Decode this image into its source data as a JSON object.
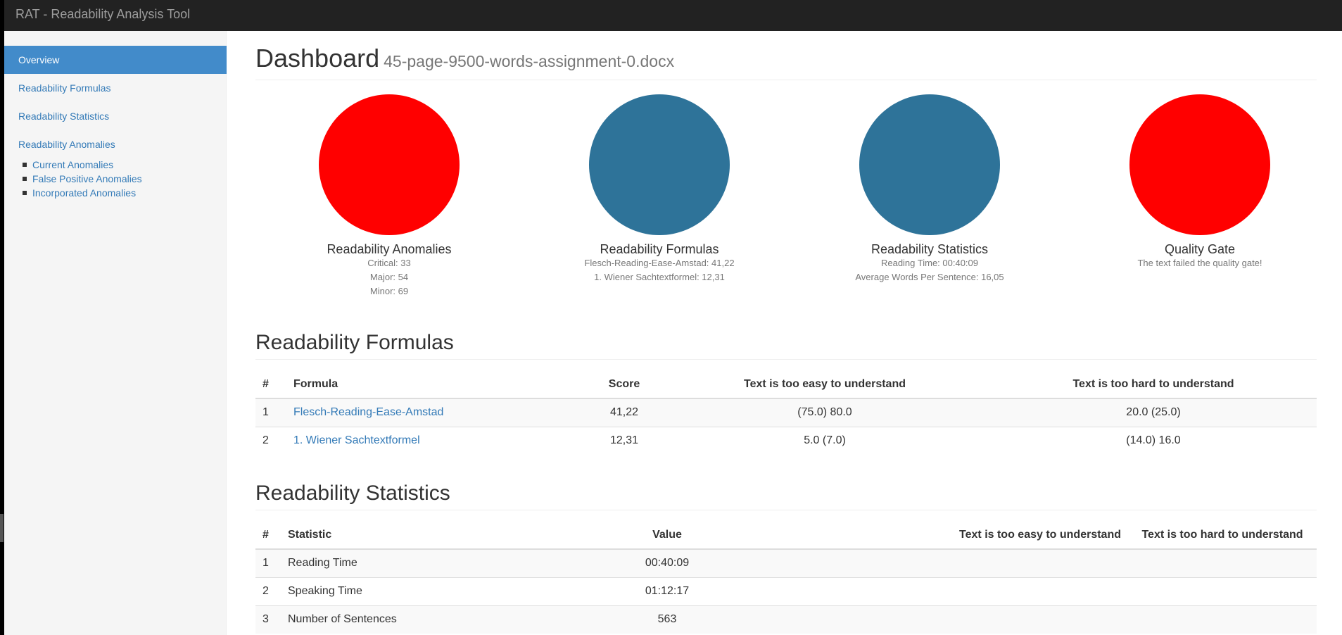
{
  "app": {
    "title": "RAT - Readability Analysis Tool"
  },
  "sidebar": {
    "items": [
      {
        "label": "Overview"
      },
      {
        "label": "Readability Formulas"
      },
      {
        "label": "Readability Statistics"
      },
      {
        "label": "Readability Anomalies"
      }
    ],
    "sub_items": [
      {
        "label": "Current Anomalies"
      },
      {
        "label": "False Positive Anomalies"
      },
      {
        "label": "Incorporated Anomalies"
      }
    ]
  },
  "header": {
    "title": "Dashboard",
    "filename": "45-page-9500-words-assignment-0.docx"
  },
  "tiles": [
    {
      "title": "Readability Anomalies",
      "color": "#ff0000",
      "lines": [
        "Critical: 33",
        "Major: 54",
        "Minor: 69"
      ]
    },
    {
      "title": "Readability Formulas",
      "color": "#2e7399",
      "lines": [
        "Flesch-Reading-Ease-Amstad: 41,22",
        "1. Wiener Sachtextformel: 12,31"
      ]
    },
    {
      "title": "Readability Statistics",
      "color": "#2e7399",
      "lines": [
        "Reading Time: 00:40:09",
        "Average Words Per Sentence: 16,05"
      ]
    },
    {
      "title": "Quality Gate",
      "color": "#ff0000",
      "lines": [
        "The text failed the quality gate!"
      ]
    }
  ],
  "formulas": {
    "title": "Readability Formulas",
    "headers": [
      "#",
      "Formula",
      "Score",
      "Text is too easy to understand",
      "Text is too hard to understand"
    ],
    "rows": [
      {
        "num": "1",
        "name": "Flesch-Reading-Ease-Amstad",
        "score": "41,22",
        "easy": "(75.0) 80.0",
        "hard": "20.0 (25.0)"
      },
      {
        "num": "2",
        "name": "1. Wiener Sachtextformel",
        "score": "12,31",
        "easy": "5.0 (7.0)",
        "hard": "(14.0) 16.0"
      }
    ]
  },
  "statistics": {
    "title": "Readability Statistics",
    "headers": [
      "#",
      "Statistic",
      "Value",
      "Text is too easy to understand",
      "Text is too hard to understand"
    ],
    "rows": [
      {
        "num": "1",
        "name": "Reading Time",
        "value": "00:40:09",
        "easy": "",
        "hard": ""
      },
      {
        "num": "2",
        "name": "Speaking Time",
        "value": "01:12:17",
        "easy": "",
        "hard": ""
      },
      {
        "num": "3",
        "name": "Number of Sentences",
        "value": "563",
        "easy": "",
        "hard": ""
      }
    ]
  }
}
